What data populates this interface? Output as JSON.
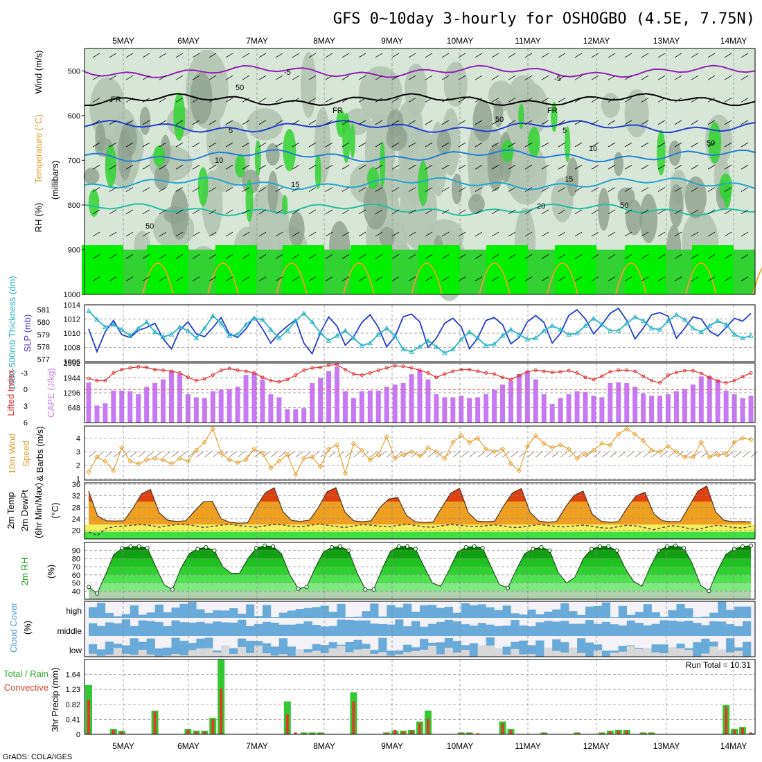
{
  "title": "GFS 0~10day 3-hourly for OSHOGBO (4.5E, 7.75N)",
  "footer": "GrADS: COLA/IGES",
  "dates": [
    "5MAY",
    "6MAY",
    "7MAY",
    "8MAY",
    "9MAY",
    "10MAY",
    "11MAY",
    "12MAY",
    "13MAY",
    "14MAY"
  ],
  "colors": {
    "rh_dark": "#8ea08e",
    "rh_mid": "#b4c4b4",
    "rh_light": "#d8e6d8",
    "rh_green": "#32d232",
    "rh_bright": "#00f000",
    "precip_total": "#32c832",
    "precip_conv": "#e03a2a",
    "cape_bar": "#c878f0",
    "li_line": "#e03030",
    "slp_line": "#1e3cd2",
    "thick_line": "#28b4c8",
    "wind_line": "#e8a030",
    "cloud_blue": "#6aaad8",
    "cloud_gray": "#d8d8d8"
  },
  "chart_data": [
    {
      "type": "heatmap",
      "panel": "profile",
      "ylabels": [
        "Wind (m/s)",
        "Temperature (°C)",
        "RH (%)",
        "(millibars)"
      ],
      "yticks": [
        500,
        600,
        700,
        800,
        900,
        1000
      ],
      "ylim": [
        1000,
        450
      ],
      "isotherm_labels": [
        "-5",
        "-5",
        "FR",
        "FR",
        "FR",
        "5",
        "5",
        "10",
        "10",
        "15",
        "15",
        "20",
        "50",
        "50",
        "50",
        "50",
        "50"
      ],
      "isotherms": [
        {
          "label": "-5",
          "color": "#9020b0",
          "pressure": 502
        },
        {
          "label": "FR",
          "color": "#000000",
          "pressure": 565
        },
        {
          "label": "5",
          "color": "#2040d0",
          "pressure": 625
        },
        {
          "label": "10",
          "color": "#2080d0",
          "pressure": 690
        },
        {
          "label": "15",
          "color": "#20a8c8",
          "pressure": 752
        },
        {
          "label": "20",
          "color": "#20c0a0",
          "pressure": 810
        }
      ]
    },
    {
      "type": "line",
      "panel": "slp_thickness",
      "ylabel_left": "1000-500mb Thickness (dm)",
      "ylabel_right": "SLP (mb)",
      "yticks_left": [
        577,
        578,
        579,
        580,
        581
      ],
      "yticks_right": [
        1006,
        1008,
        1010,
        1012,
        1014
      ],
      "ylim_right": [
        1006,
        1014
      ],
      "series": [
        {
          "name": "SLP (mb)",
          "values": [
            1010.6,
            1007.4,
            1010.2,
            1011.8,
            1009.8,
            1009.4,
            1010.4,
            1010.8,
            1011.4,
            1009.2,
            1007.8,
            1010.4,
            1011.6,
            1009.9,
            1009.5,
            1010.8,
            1012.2,
            1009.9,
            1009.4,
            1010.6,
            1012.3,
            1010.6,
            1008.6,
            1010.0,
            1011.0,
            1011.9,
            1008.6,
            1007.1,
            1010.1,
            1012.3,
            1011.0,
            1008.3,
            1009.5,
            1011.5,
            1012.6,
            1010.8,
            1008.1,
            1009.5,
            1012.3,
            1012.7,
            1011.6,
            1008.0,
            1009.3,
            1011.4,
            1012.1,
            1010.9,
            1007.8,
            1009.3,
            1011.8,
            1012.2,
            1011.2,
            1008.5,
            1009.4,
            1011.6,
            1012.5,
            1011.5,
            1008.6,
            1010.0,
            1012.5,
            1013.3,
            1012.0,
            1009.9,
            1011.2,
            1012.8,
            1013.5,
            1011.8,
            1009.2,
            1010.7,
            1012.6,
            1012.9,
            1012.4,
            1009.3,
            1010.7,
            1012.3,
            1012.0,
            1010.3,
            1009.6,
            1010.8,
            1012.1,
            1011.7,
            1012.8
          ]
        },
        {
          "name": "1000-500mb Thickness (dm)",
          "values": [
            580.9,
            580.2,
            579.6,
            579.8,
            579.4,
            578.9,
            579.5,
            580.0,
            579.2,
            578.8,
            579.0,
            579.6,
            579.3,
            578.7,
            579.5,
            580.5,
            579.9,
            578.9,
            579.0,
            579.8,
            580.3,
            580.2,
            579.4,
            578.7,
            579.3,
            580.1,
            580.7,
            580.0,
            579.1,
            578.5,
            578.9,
            579.3,
            578.7,
            578.1,
            578.3,
            579.0,
            579.5,
            578.9,
            577.8,
            577.6,
            578.0,
            578.5,
            578.0,
            577.5,
            577.8,
            578.6,
            579.2,
            578.7,
            578.1,
            578.2,
            578.9,
            579.4,
            579.0,
            578.6,
            578.7,
            579.3,
            579.7,
            579.4,
            579.0,
            579.1,
            579.7,
            580.3,
            579.8,
            579.3,
            579.3,
            579.9,
            580.4,
            580.1,
            579.5,
            579.4,
            580.1,
            580.6,
            580.2,
            579.5,
            579.2,
            579.7,
            580.1,
            579.8,
            579.0,
            578.7,
            578.9
          ]
        }
      ]
    },
    {
      "type": "bar",
      "panel": "cape_li",
      "ylabel_left": "Lifted Index",
      "ylabel_right": "CAPE (J/kg)",
      "yticks_left": [
        -3,
        0,
        3,
        6
      ],
      "yticks_right": [
        648,
        1296,
        1944,
        2592
      ],
      "ylim_cape": [
        0,
        2592
      ],
      "cape": [
        1744,
        739,
        836,
        1393,
        1393,
        1361,
        1231,
        1555,
        1717,
        1879,
        2235,
        2106,
        1231,
        1101,
        1069,
        1361,
        1426,
        1458,
        1555,
        2073,
        2170,
        1879,
        1231,
        1101,
        583,
        583,
        627,
        1717,
        1944,
        2235,
        2430,
        1361,
        1069,
        1361,
        1393,
        1393,
        1555,
        1652,
        1717,
        2106,
        2300,
        1879,
        1231,
        1101,
        1101,
        1166,
        1069,
        1101,
        1231,
        1426,
        1652,
        1814,
        2106,
        2235,
        1879,
        1231,
        810,
        1069,
        1231,
        1361,
        1328,
        1166,
        1101,
        1717,
        1750,
        1717,
        1555,
        1264,
        1166,
        1166,
        1231,
        1361,
        1458,
        1652,
        2008,
        2008,
        1879,
        1393,
        1231,
        1069,
        1166
      ],
      "lifted_index": [
        -2.0,
        -1.6,
        -1.6,
        -3.0,
        -3.6,
        -3.9,
        -4.1,
        -4.0,
        -3.6,
        -3.5,
        -3.3,
        -3.0,
        -2.2,
        -1.6,
        -1.9,
        -2.6,
        -3.5,
        -3.8,
        -3.5,
        -3.3,
        -3.0,
        -2.2,
        -1.6,
        -1.4,
        -1.8,
        -2.6,
        -3.5,
        -3.9,
        -4.0,
        -4.4,
        -4.5,
        -3.6,
        -2.8,
        -2.6,
        -3.0,
        -3.5,
        -3.9,
        -4.3,
        -4.2,
        -3.9,
        -3.5,
        -3.0,
        -2.2,
        -2.8,
        -3.3,
        -3.6,
        -3.6,
        -3.3,
        -3.0,
        -2.8,
        -2.2,
        -1.8,
        -2.5,
        -3.2,
        -3.5,
        -3.3,
        -3.1,
        -3.2,
        -3.4,
        -3.0,
        -2.2,
        -1.8,
        -2.4,
        -3.2,
        -3.5,
        -3.5,
        -3.3,
        -2.4,
        -1.6,
        -1.2,
        -2.6,
        -3.1,
        -3.4,
        -3.4,
        -2.9,
        -2.2,
        -1.5,
        -1.2,
        -1.6,
        -2.3,
        -3.0
      ]
    },
    {
      "type": "line",
      "panel": "wind10m",
      "ylabel": "10m Wind Speed & Barbs (m/s)",
      "yticks": [
        1,
        2,
        3,
        4
      ],
      "ylim": [
        0.9,
        4.9
      ],
      "series": [
        {
          "name": "10m Wind Speed",
          "values": [
            1.5,
            2.6,
            2.3,
            1.6,
            3.3,
            2.3,
            2.1,
            2.4,
            2.5,
            2.4,
            2.1,
            2.5,
            2.3,
            3.1,
            3.7,
            4.7,
            2.9,
            2.4,
            2.2,
            2.4,
            3.2,
            2.9,
            1.8,
            2.3,
            2.8,
            1.3,
            2.5,
            2.6,
            1.9,
            3.2,
            3.5,
            1.4,
            3.6,
            3.1,
            2.4,
            2.8,
            4.1,
            2.5,
            2.8,
            3.0,
            2.7,
            3.3,
            3.0,
            2.5,
            3.7,
            4.2,
            3.7,
            4.0,
            3.2,
            3.0,
            3.2,
            2.1,
            1.6,
            3.4,
            4.2,
            3.6,
            3.3,
            3.5,
            3.2,
            2.5,
            2.8,
            3.1,
            3.6,
            3.5,
            4.3,
            4.7,
            4.3,
            3.8,
            3.1,
            3.0,
            3.4,
            3.0,
            2.6,
            2.6,
            3.7,
            2.6,
            2.8,
            2.8,
            3.7,
            4.0,
            3.9
          ]
        }
      ]
    },
    {
      "type": "area",
      "panel": "temp2m",
      "ylabel": "2m Temp 2m DewPt (6hr Min/Max) (°C)",
      "yticks": [
        20,
        24,
        28,
        32,
        36
      ],
      "ylim": [
        17,
        36.5
      ],
      "series": [
        {
          "name": "2m Temp",
          "values": [
            33.6,
            25.0,
            23.3,
            23.2,
            23.3,
            27.6,
            32.7,
            34.2,
            26.0,
            23.4,
            23.1,
            23.3,
            26.7,
            29.9,
            30.1,
            24.0,
            22.8,
            22.5,
            22.6,
            28.2,
            33.0,
            34.8,
            26.5,
            23.4,
            23.1,
            23.5,
            27.8,
            33.4,
            34.8,
            26.4,
            23.3,
            23.0,
            23.3,
            28.0,
            30.9,
            31.4,
            25.1,
            23.0,
            22.7,
            22.9,
            28.0,
            32.9,
            34.6,
            26.1,
            23.2,
            23.0,
            23.2,
            28.5,
            33.0,
            34.5,
            26.2,
            23.2,
            22.8,
            23.1,
            28.1,
            32.2,
            33.6,
            25.7,
            23.2,
            22.8,
            23.0,
            27.9,
            32.0,
            33.2,
            25.7,
            23.3,
            23.0,
            23.1,
            28.3,
            33.6,
            35.4,
            26.4,
            23.4,
            23.0,
            23.1,
            22.9
          ]
        },
        {
          "name": "2m DewPt",
          "values": [
            19.4,
            18.2,
            20.7,
            21.3,
            21.5,
            21.8,
            22.0,
            21.7,
            21.1,
            21.6,
            22.0,
            22.0,
            21.6,
            21.0,
            21.3,
            21.8,
            22.1,
            21.7,
            21.3,
            21.1,
            21.6,
            22.0,
            21.9,
            21.4,
            21.2,
            21.7,
            22.2,
            21.8,
            21.3,
            21.0,
            21.5,
            22.0,
            21.8,
            21.4,
            21.2,
            21.7,
            22.1,
            21.7,
            21.2,
            21.1,
            21.6,
            22.0,
            21.8,
            21.4,
            21.3,
            21.6,
            21.9,
            21.5,
            21.0,
            21.1,
            21.6,
            22.0,
            21.7,
            21.3,
            21.2,
            21.5,
            21.8,
            21.4,
            20.9,
            20.7,
            21.3,
            21.8,
            21.5,
            20.9,
            20.2,
            21.0,
            21.6,
            21.3,
            20.6,
            20.3,
            21.1,
            21.7,
            21.5,
            21.0,
            20.8,
            21.3
          ]
        }
      ]
    },
    {
      "type": "area",
      "panel": "rh2m",
      "ylabel": "2m RH (%)",
      "yticks": [
        40,
        50,
        60,
        70,
        80,
        90
      ],
      "ylim": [
        30,
        100
      ],
      "series": [
        {
          "name": "2m RH",
          "values": [
            45,
            37,
            60,
            85,
            93,
            95,
            95,
            93,
            70,
            48,
            42,
            68,
            86,
            92,
            94,
            90,
            70,
            62,
            62,
            80,
            93,
            96,
            95,
            86,
            60,
            43,
            45,
            68,
            88,
            94,
            95,
            90,
            63,
            42,
            42,
            67,
            89,
            95,
            95,
            92,
            70,
            50,
            46,
            66,
            88,
            94,
            95,
            93,
            70,
            48,
            44,
            66,
            86,
            92,
            94,
            90,
            63,
            50,
            57,
            80,
            92,
            95,
            95,
            90,
            68,
            52,
            46,
            70,
            90,
            95,
            96,
            93,
            74,
            47,
            40,
            65,
            85,
            92,
            95,
            96
          ]
        }
      ]
    },
    {
      "type": "heatmap",
      "panel": "cloud",
      "ylabel": "Cloud Cover (%)",
      "levels": [
        "high",
        "middle",
        "low"
      ]
    },
    {
      "type": "bar",
      "panel": "precip",
      "ylabel": "3hr Precip (mm)",
      "left_label": "Total / Rain Convective",
      "yticks": [
        0,
        0.41,
        0.82,
        1.23,
        1.64
      ],
      "ylim": [
        0,
        2.05
      ],
      "run_total": "Run Total = 10.31",
      "series": [
        {
          "name": "Total",
          "values": [
            1.35,
            0,
            0,
            0.15,
            0.1,
            0,
            0,
            0,
            0.65,
            0,
            0,
            0,
            0.15,
            0.1,
            0.1,
            0.45,
            2.05,
            0,
            0,
            0,
            0,
            0,
            0,
            0,
            0.9,
            0,
            0.05,
            0.05,
            0.05,
            0,
            0,
            0,
            1.15,
            0,
            0,
            0,
            0.05,
            0.1,
            0.1,
            0.12,
            0.35,
            0.65,
            0,
            0,
            0,
            0.05,
            0.05,
            0,
            0,
            0,
            0.35,
            0.15,
            0,
            0,
            0,
            0.05,
            0,
            0,
            0,
            0.05,
            0,
            0,
            0.05,
            0.1,
            0.12,
            0.12,
            0,
            0.05,
            0.05,
            0,
            0,
            0,
            0,
            0,
            0,
            0,
            0,
            0.8,
            0.15,
            0.2,
            0.03
          ]
        },
        {
          "name": "Convective",
          "values": [
            0.95,
            0,
            0,
            0.12,
            0.08,
            0,
            0,
            0,
            0.62,
            0,
            0,
            0,
            0.12,
            0.08,
            0.08,
            0.42,
            1.25,
            0,
            0,
            0,
            0,
            0,
            0,
            0,
            0.55,
            0.05,
            0.03,
            0.03,
            0.03,
            0,
            0,
            0,
            0.9,
            0,
            0,
            0,
            0.04,
            0.12,
            0.08,
            0.1,
            0.3,
            0.42,
            0,
            0,
            0,
            0.04,
            0.04,
            0.03,
            0,
            0,
            0.3,
            0.12,
            0,
            0,
            0,
            0.04,
            0,
            0,
            0,
            0.04,
            0,
            0,
            0.04,
            0.08,
            0.1,
            0.1,
            0,
            0.04,
            0.04,
            0,
            0,
            0,
            0,
            0,
            0,
            0,
            0,
            0.75,
            0.12,
            0.18,
            0.05
          ]
        }
      ]
    }
  ]
}
